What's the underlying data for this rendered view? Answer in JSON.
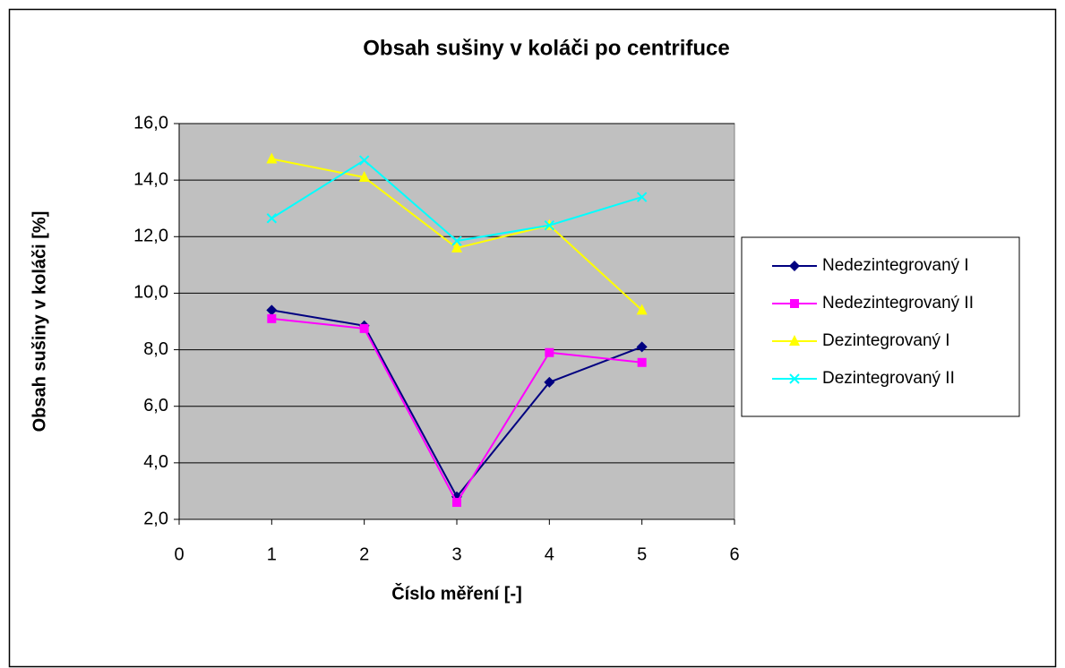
{
  "chart_data": {
    "type": "line",
    "title": "Obsah sušiny v koláči po centrifuce",
    "xlabel": "Číslo měření [-]",
    "ylabel": "Obsah sušiny v koláči [%]",
    "xlim": [
      0,
      6
    ],
    "xticks": [
      0,
      1,
      2,
      3,
      4,
      5,
      6
    ],
    "ylim": [
      2,
      16
    ],
    "yticks": [
      {
        "value": 2,
        "label": "2,0"
      },
      {
        "value": 4,
        "label": "4,0"
      },
      {
        "value": 6,
        "label": "6,0"
      },
      {
        "value": 8,
        "label": "8,0"
      },
      {
        "value": 10,
        "label": "10,0"
      },
      {
        "value": 12,
        "label": "12,0"
      },
      {
        "value": 14,
        "label": "14,0"
      },
      {
        "value": 16,
        "label": "16,0"
      }
    ],
    "grid": true,
    "legend": "right",
    "x": [
      1,
      2,
      3,
      4,
      5
    ],
    "series": [
      {
        "name": "Nedezintegrovaný I",
        "color": "#000080",
        "marker": "diamond",
        "values": [
          9.4,
          8.85,
          2.8,
          6.85,
          8.1
        ]
      },
      {
        "name": "Nedezintegrovaný II",
        "color": "#ff00ff",
        "marker": "square",
        "values": [
          9.1,
          8.75,
          2.6,
          7.9,
          7.55
        ]
      },
      {
        "name": "Dezintegrovaný I",
        "color": "#ffff00",
        "marker": "triangle",
        "values": [
          14.75,
          14.1,
          11.6,
          12.4,
          9.4
        ]
      },
      {
        "name": "Dezintegrovaný II",
        "color": "#00ffff",
        "marker": "x",
        "values": [
          12.65,
          14.7,
          11.85,
          12.4,
          13.4
        ]
      }
    ]
  }
}
